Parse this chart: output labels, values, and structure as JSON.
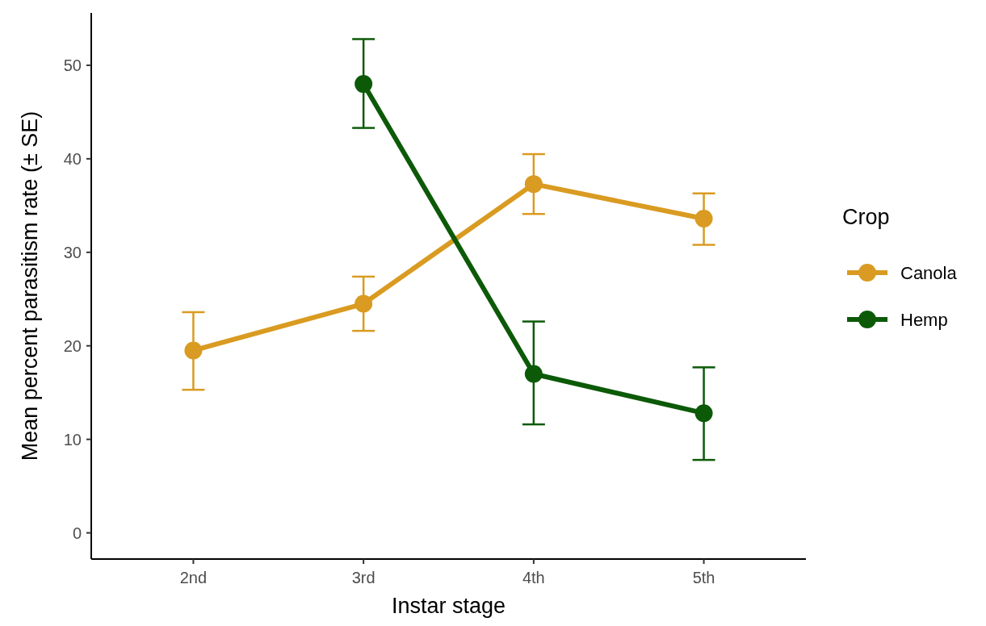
{
  "chart_data": {
    "type": "line",
    "xlabel": "Instar stage",
    "ylabel": "Mean percent parasitism rate (± SE)",
    "legend_title": "Crop",
    "categories": [
      "2nd",
      "3rd",
      "4th",
      "5th"
    ],
    "series": [
      {
        "name": "Canola",
        "color": "#d99b21",
        "values": [
          19.5,
          24.5,
          37.3,
          33.6
        ],
        "errors": [
          [
            15.3,
            23.6
          ],
          [
            21.6,
            27.4
          ],
          [
            34.1,
            40.5
          ],
          [
            30.8,
            36.3
          ]
        ]
      },
      {
        "name": "Hemp",
        "color": "#0c5a08",
        "values": [
          null,
          48.0,
          17.0,
          12.8
        ],
        "errors": [
          null,
          [
            43.3,
            52.8
          ],
          [
            11.6,
            22.6
          ],
          [
            7.8,
            17.7
          ]
        ]
      }
    ],
    "ylim": [
      -2.8,
      55.6
    ],
    "yticks": [
      0,
      10,
      20,
      30,
      40,
      50
    ],
    "grid": false,
    "legend": "right",
    "marker": "circle",
    "line_style": "solid"
  }
}
